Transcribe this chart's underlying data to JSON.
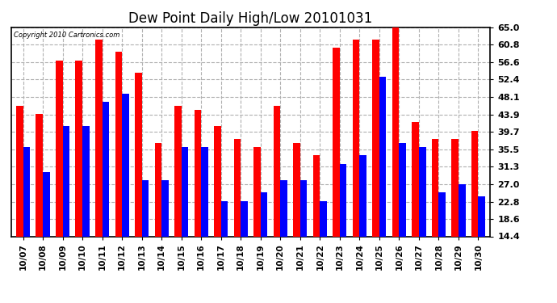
{
  "title": "Dew Point Daily High/Low 20101031",
  "copyright": "Copyright 2010 Cartronics.com",
  "yticks": [
    14.4,
    18.6,
    22.8,
    27.0,
    31.3,
    35.5,
    39.7,
    43.9,
    48.1,
    52.4,
    56.6,
    60.8,
    65.0
  ],
  "ylim": [
    14.4,
    65.0
  ],
  "dates": [
    "10/07",
    "10/08",
    "10/09",
    "10/10",
    "10/11",
    "10/12",
    "10/13",
    "10/14",
    "10/15",
    "10/16",
    "10/17",
    "10/18",
    "10/19",
    "10/20",
    "10/21",
    "10/22",
    "10/23",
    "10/24",
    "10/25",
    "10/26",
    "10/27",
    "10/28",
    "10/29",
    "10/30"
  ],
  "highs": [
    46,
    44,
    57,
    57,
    62,
    59,
    54,
    37,
    46,
    45,
    41,
    38,
    36,
    46,
    37,
    34,
    60,
    62,
    62,
    66,
    42,
    38,
    38,
    40
  ],
  "lows": [
    36,
    30,
    41,
    41,
    47,
    49,
    28,
    28,
    36,
    36,
    23,
    23,
    25,
    28,
    28,
    23,
    32,
    34,
    53,
    37,
    36,
    25,
    27,
    24
  ],
  "high_color": "#ff0000",
  "low_color": "#0000ff",
  "bg_color": "#ffffff",
  "grid_color": "#b0b0b0",
  "bar_width": 0.35,
  "title_fontsize": 12
}
